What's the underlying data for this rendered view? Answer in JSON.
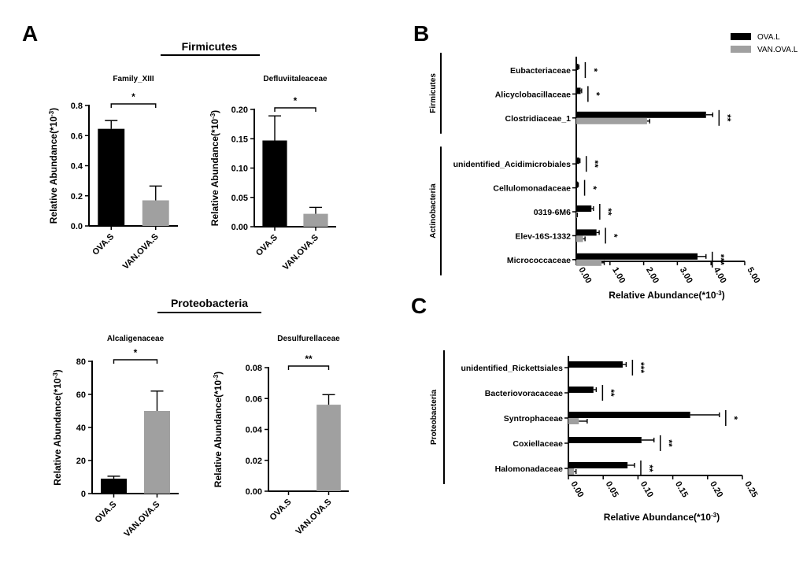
{
  "panels": {
    "A": "A",
    "B": "B",
    "C": "C"
  },
  "groups": {
    "firmicutes": "Firmicutes",
    "proteobacteria": "Proteobacteria"
  },
  "legend": [
    {
      "label": "OVA.L",
      "color": "#000000"
    },
    {
      "label": "VAN.OVA.L",
      "color": "#a0a0a0"
    }
  ],
  "colors": {
    "ova": "#000000",
    "van": "#a0a0a0"
  },
  "chart_data": [
    {
      "id": "a1",
      "type": "bar",
      "title": "Family_XIII",
      "categories": [
        "OVA.S",
        "VAN.OVA.S"
      ],
      "values": [
        0.645,
        0.17
      ],
      "errors": [
        0.055,
        0.095
      ],
      "ylim": [
        0,
        0.8
      ],
      "yticks": [
        "0.0",
        "0.2",
        "0.4",
        "0.6",
        "0.8"
      ],
      "ylabel": "Relative Abundance(*10-3)",
      "significance": "*"
    },
    {
      "id": "a2",
      "type": "bar",
      "title": "Defluviitaleaceae",
      "categories": [
        "OVA.S",
        "VAN.OVA.S"
      ],
      "values": [
        0.147,
        0.022
      ],
      "errors": [
        0.042,
        0.011
      ],
      "ylim": [
        0,
        0.2
      ],
      "yticks": [
        "0.00",
        "0.05",
        "0.10",
        "0.15",
        "0.20"
      ],
      "ylabel": "Relative Abundance(*10-3)",
      "significance": "*"
    },
    {
      "id": "a3",
      "type": "bar",
      "title": "Alcaligenaceae",
      "categories": [
        "OVA.S",
        "VAN.OVA.S"
      ],
      "values": [
        9,
        50
      ],
      "errors": [
        1.5,
        12
      ],
      "ylim": [
        0,
        80
      ],
      "yticks": [
        "0",
        "20",
        "40",
        "60",
        "80"
      ],
      "ylabel": "Relative Abundance(*10-3)",
      "significance": "*"
    },
    {
      "id": "a4",
      "type": "bar",
      "title": "Desulfurellaceae",
      "categories": [
        "OVA.S",
        "VAN.OVA.S"
      ],
      "values": [
        0.0,
        0.056
      ],
      "errors": [
        0,
        0.0065
      ],
      "ylim": [
        0,
        0.08
      ],
      "yticks": [
        "0.00",
        "0.02",
        "0.04",
        "0.06",
        "0.08"
      ],
      "ylabel": "Relative Abundance(*10-3)",
      "significance": "**"
    },
    {
      "id": "b",
      "type": "bar",
      "orientation": "horizontal",
      "xlim": [
        0,
        5
      ],
      "xticks": [
        "0.00",
        "1.00",
        "2.00",
        "3.00",
        "4.00",
        "5.00"
      ],
      "xlabel": "Relative Abundance(*10-3)",
      "groups": [
        {
          "name": "Firmicutes",
          "start": 0,
          "end": 2
        },
        {
          "name": "Actinobacteria",
          "start": 3,
          "end": 7
        }
      ],
      "categories": [
        "Eubacteriaceae",
        "Alicyclobacillaceae",
        "Clostridiaceae_1",
        "unidentified_Acidimicrobiales",
        "Cellulomonadaceae",
        "0319-6M6",
        "Elev-16S-1332",
        "Micrococcaceae"
      ],
      "series": [
        {
          "name": "OVA.L",
          "values": [
            0.06,
            0.13,
            3.85,
            0.09,
            0.05,
            0.45,
            0.6,
            3.6
          ],
          "errors": [
            0.02,
            0.03,
            0.2,
            0.02,
            0.01,
            0.06,
            0.08,
            0.25
          ]
        },
        {
          "name": "VAN.OVA.L",
          "values": [
            0.0,
            0.0,
            2.1,
            0.0,
            0.0,
            0.02,
            0.2,
            0.75
          ],
          "errors": [
            0,
            0,
            0.08,
            0,
            0,
            0.01,
            0.06,
            0.08
          ]
        }
      ],
      "significance": [
        "*",
        "*",
        "**",
        "**",
        "*",
        "**",
        "*",
        "***"
      ]
    },
    {
      "id": "c",
      "type": "bar",
      "orientation": "horizontal",
      "xlim": [
        0,
        0.25
      ],
      "xticks": [
        "0.00",
        "0.05",
        "0.10",
        "0.15",
        "0.20",
        "0.25"
      ],
      "xlabel": "Relative Abundance(*10-3)",
      "groups": [
        {
          "name": "Proteobacteria",
          "start": 0,
          "end": 4
        }
      ],
      "categories": [
        "unidentified_Rickettsiales",
        "Bacteriovoracaceae",
        "Syntrophaceae",
        "Coxiellaceae",
        "Halomonadaceae"
      ],
      "series": [
        {
          "name": "OVA.L",
          "values": [
            0.078,
            0.036,
            0.175,
            0.105,
            0.085
          ],
          "errors": [
            0.005,
            0.004,
            0.042,
            0.018,
            0.01
          ]
        },
        {
          "name": "VAN.OVA.L",
          "values": [
            0.0,
            0.0,
            0.015,
            0.0,
            0.008
          ],
          "errors": [
            0,
            0,
            0.012,
            0,
            0.003
          ]
        }
      ],
      "significance": [
        "***",
        "**",
        "*",
        "**",
        "**"
      ]
    }
  ]
}
